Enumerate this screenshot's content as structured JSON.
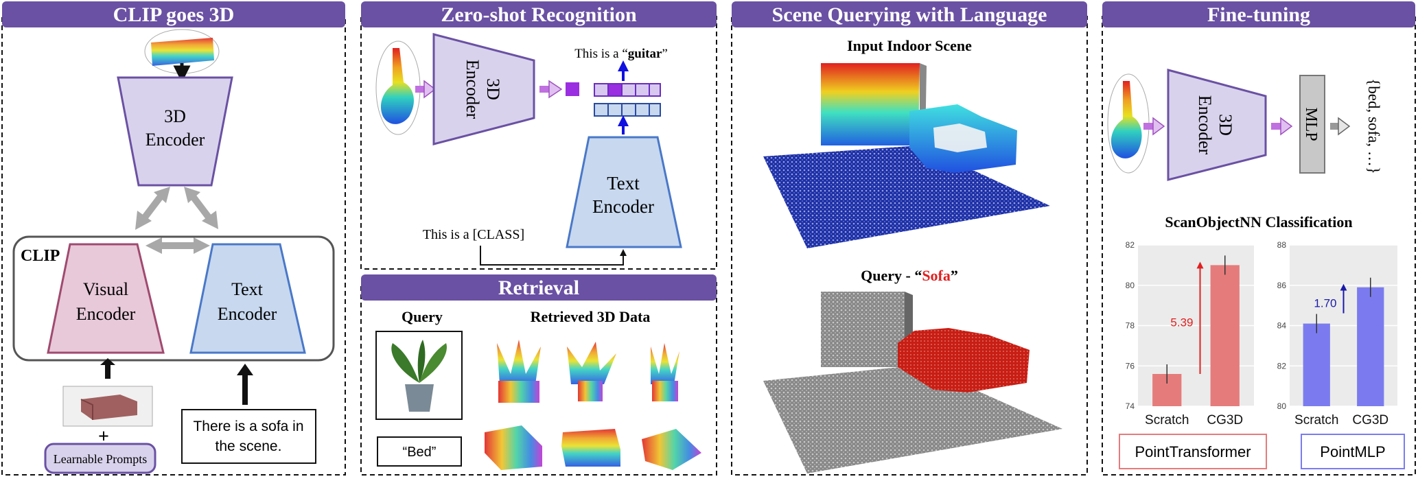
{
  "panels": {
    "clip3d": {
      "title": "CLIP goes 3D",
      "encoder_3d": [
        "3D",
        "Encoder"
      ],
      "clip_label": "CLIP",
      "visual_encoder": [
        "Visual",
        "Encoder"
      ],
      "text_encoder": [
        "Text",
        "Encoder"
      ],
      "plus": "+",
      "learnable_prompts": "Learnable Prompts",
      "sentence": [
        "There is a sofa in",
        "the scene."
      ]
    },
    "zeroshot": {
      "title": "Zero-shot Recognition",
      "encoder_3d": [
        "3D",
        "Encoder"
      ],
      "text_encoder": [
        "Text",
        "Encoder"
      ],
      "result_prefix": "This is a “",
      "result_class": "guitar",
      "result_suffix": "”",
      "prompt": "This is a [CLASS]"
    },
    "retrieval": {
      "title": "Retrieval",
      "query_label": "Query",
      "retrieved_label": "Retrieved 3D Data",
      "text_query": "“Bed”"
    },
    "scene": {
      "title": "Scene Querying with Language",
      "input_label": "Input Indoor Scene",
      "query_prefix": "Query - “",
      "query_word": "Sofa",
      "query_suffix": "”"
    },
    "finetune": {
      "title": "Fine-tuning",
      "encoder_3d": [
        "3D",
        "Encoder"
      ],
      "mlp": "MLP",
      "classes": "{bed, sofa, …}",
      "classification_title": "ScanObjectNN Classification"
    }
  },
  "colors": {
    "header": "#6a51a3",
    "encoder_3d": "#d9d2ec",
    "visual_encoder": "#e8c9d9",
    "text_encoder": "#c7d8ef",
    "pt_bar": "#e57b7b",
    "pm_bar": "#7b7bef"
  },
  "chart_data": [
    {
      "type": "bar",
      "title": "",
      "categories": [
        "Scratch",
        "CG3D"
      ],
      "values": [
        75.6,
        81.0
      ],
      "ylim": [
        74,
        82
      ],
      "yticks": [
        74,
        76,
        78,
        80,
        82
      ],
      "annotation": "5.39",
      "grid": true,
      "legend_label": "PointTransformer"
    },
    {
      "type": "bar",
      "title": "",
      "categories": [
        "Scratch",
        "CG3D"
      ],
      "values": [
        84.1,
        85.9
      ],
      "ylim": [
        80,
        88
      ],
      "yticks": [
        80,
        82,
        84,
        86,
        88
      ],
      "annotation": "1.70",
      "grid": true,
      "legend_label": "PointMLP"
    }
  ]
}
